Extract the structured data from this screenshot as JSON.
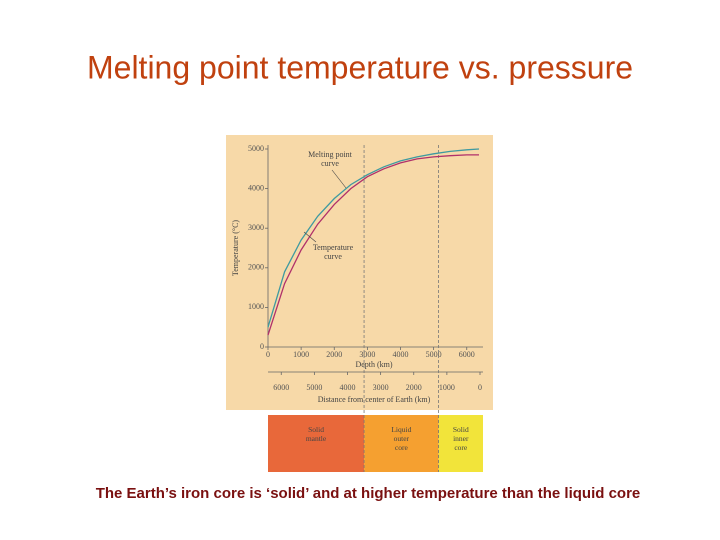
{
  "chart_data": {
    "type": "line",
    "title": "Melting point temperature vs. pressure",
    "caption": "The Earth’s iron core is ‘solid’ and at higher temperature than the liquid core",
    "x_label": "Depth (km)",
    "x2_label": "Distance from center of Earth (km)",
    "y_label": "Temperature (°C)",
    "x": [
      0,
      500,
      1000,
      1500,
      2000,
      2500,
      3000,
      3500,
      4000,
      4500,
      5000,
      5500,
      6000,
      6371
    ],
    "series": [
      {
        "name": "Melting point curve",
        "color": "#3f9aa0",
        "values": [
          500,
          1900,
          2700,
          3300,
          3750,
          4100,
          4350,
          4550,
          4700,
          4800,
          4880,
          4940,
          4980,
          5000
        ]
      },
      {
        "name": "Temperature curve",
        "color": "#b0306a",
        "values": [
          300,
          1600,
          2450,
          3100,
          3600,
          4000,
          4300,
          4500,
          4650,
          4750,
          4800,
          4830,
          4850,
          4850
        ]
      }
    ],
    "xlim": [
      0,
      6400
    ],
    "xticks": [
      0,
      1000,
      2000,
      3000,
      4000,
      5000,
      6000
    ],
    "x2lim": [
      6400,
      0
    ],
    "x2ticks": [
      6000,
      5000,
      4000,
      3000,
      2000,
      1000,
      0
    ],
    "ylim": [
      0,
      5000
    ],
    "yticks": [
      0,
      1000,
      2000,
      3000,
      4000,
      5000
    ],
    "boundaries": [
      2900,
      5150
    ],
    "layers": [
      {
        "name": "Solid mantle",
        "color": "#e8683a"
      },
      {
        "name": "Liquid outer core",
        "color": "#f5a030"
      },
      {
        "name": "Solid inner core",
        "color": "#f2e43a"
      }
    ]
  }
}
